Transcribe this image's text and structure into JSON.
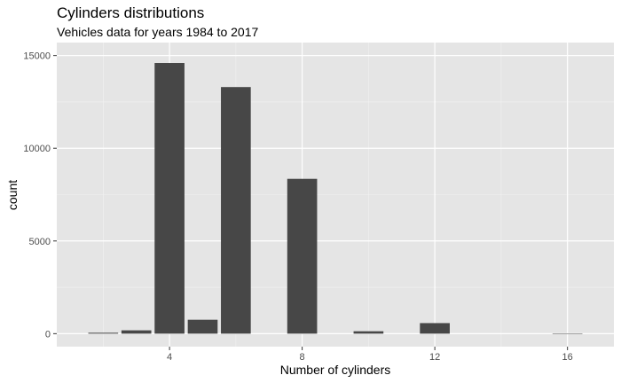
{
  "chart_data": {
    "type": "bar",
    "title": "Cylinders distributions",
    "subtitle": "Vehicles data for years 1984 to 2017",
    "xlabel": "Number of cylinders",
    "ylabel": "count",
    "x": [
      2,
      3,
      4,
      5,
      6,
      8,
      10,
      12,
      16
    ],
    "values": [
      50,
      180,
      14600,
      750,
      13300,
      8350,
      130,
      570,
      10
    ],
    "xlim": [
      0.6,
      17.4
    ],
    "ylim": [
      -700,
      15700
    ],
    "x_ticks": [
      4,
      8,
      12,
      16
    ],
    "y_ticks": [
      0,
      5000,
      10000,
      15000
    ],
    "grid": true,
    "legend": "none",
    "colors": {
      "panel_background": "#e5e5e5",
      "grid_major": "#ffffff",
      "grid_minor": "#f2f2f2",
      "bar_fill": "#474747",
      "axis_text": "#4d4d4d"
    }
  }
}
